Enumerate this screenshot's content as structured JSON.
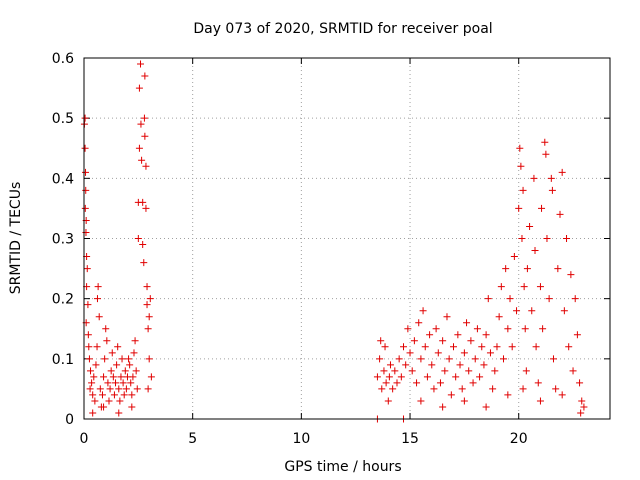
{
  "chart_data": {
    "type": "scatter",
    "title": "Day 073 of 2020, SRMTID for receiver poal",
    "xlabel": "GPS time / hours",
    "ylabel": "SRMTID / TECUs",
    "xlim": [
      0,
      24.2
    ],
    "ylim": [
      0,
      0.6
    ],
    "xticks": [
      0,
      5,
      10,
      15,
      20
    ],
    "xtick_labels": [
      "0",
      "5",
      "10",
      "15",
      "20"
    ],
    "yticks": [
      0,
      0.1,
      0.2,
      0.3,
      0.4,
      0.5,
      0.6
    ],
    "ytick_labels": [
      "0",
      "0.1",
      "0.2",
      "0.3",
      "0.4",
      "0.5",
      "0.6"
    ],
    "grid": true,
    "marker": "+",
    "color": "#e00000",
    "series": [
      {
        "name": "SRMTID",
        "points": [
          [
            0.02,
            0.49
          ],
          [
            0.05,
            0.5
          ],
          [
            0.05,
            0.45
          ],
          [
            0.07,
            0.41
          ],
          [
            0.08,
            0.38
          ],
          [
            0.06,
            0.35
          ],
          [
            0.1,
            0.33
          ],
          [
            0.09,
            0.31
          ],
          [
            0.12,
            0.27
          ],
          [
            0.15,
            0.25
          ],
          [
            0.12,
            0.22
          ],
          [
            0.18,
            0.19
          ],
          [
            0.1,
            0.16
          ],
          [
            0.2,
            0.14
          ],
          [
            0.22,
            0.12
          ],
          [
            0.25,
            0.1
          ],
          [
            0.3,
            0.08
          ],
          [
            0.35,
            0.06
          ],
          [
            0.28,
            0.05
          ],
          [
            0.4,
            0.04
          ],
          [
            0.45,
            0.07
          ],
          [
            0.5,
            0.03
          ],
          [
            0.55,
            0.09
          ],
          [
            0.6,
            0.12
          ],
          [
            0.62,
            0.2
          ],
          [
            0.65,
            0.22
          ],
          [
            0.7,
            0.17
          ],
          [
            0.75,
            0.05
          ],
          [
            0.8,
            0.02
          ],
          [
            0.85,
            0.04
          ],
          [
            0.9,
            0.07
          ],
          [
            0.95,
            0.1
          ],
          [
            1.0,
            0.15
          ],
          [
            1.05,
            0.13
          ],
          [
            1.1,
            0.06
          ],
          [
            1.15,
            0.03
          ],
          [
            1.2,
            0.05
          ],
          [
            1.25,
            0.08
          ],
          [
            1.3,
            0.11
          ],
          [
            1.35,
            0.07
          ],
          [
            1.4,
            0.04
          ],
          [
            1.45,
            0.06
          ],
          [
            1.5,
            0.09
          ],
          [
            1.55,
            0.12
          ],
          [
            1.6,
            0.05
          ],
          [
            1.65,
            0.03
          ],
          [
            1.7,
            0.07
          ],
          [
            1.75,
            0.1
          ],
          [
            1.8,
            0.06
          ],
          [
            1.85,
            0.04
          ],
          [
            1.9,
            0.08
          ],
          [
            1.95,
            0.05
          ],
          [
            2.0,
            0.07
          ],
          [
            2.05,
            0.1
          ],
          [
            2.1,
            0.09
          ],
          [
            2.15,
            0.06
          ],
          [
            2.2,
            0.04
          ],
          [
            2.25,
            0.07
          ],
          [
            2.3,
            0.11
          ],
          [
            2.35,
            0.13
          ],
          [
            2.4,
            0.08
          ],
          [
            2.45,
            0.05
          ],
          [
            2.5,
            0.3
          ],
          [
            2.5,
            0.36
          ],
          [
            2.55,
            0.45
          ],
          [
            2.55,
            0.55
          ],
          [
            2.6,
            0.59
          ],
          [
            2.62,
            0.49
          ],
          [
            2.65,
            0.43
          ],
          [
            2.7,
            0.36
          ],
          [
            2.7,
            0.29
          ],
          [
            2.75,
            0.26
          ],
          [
            2.78,
            0.5
          ],
          [
            2.8,
            0.57
          ],
          [
            2.8,
            0.47
          ],
          [
            2.85,
            0.42
          ],
          [
            2.85,
            0.35
          ],
          [
            2.9,
            0.22
          ],
          [
            2.9,
            0.19
          ],
          [
            2.95,
            0.15
          ],
          [
            3.0,
            0.17
          ],
          [
            3.05,
            0.2
          ],
          [
            3.0,
            0.1
          ],
          [
            2.95,
            0.05
          ],
          [
            3.1,
            0.07
          ],
          [
            0.4,
            0.01
          ],
          [
            0.9,
            0.02
          ],
          [
            1.6,
            0.01
          ],
          [
            2.2,
            0.02
          ],
          [
            13.5,
            0.07
          ],
          [
            13.6,
            0.1
          ],
          [
            13.65,
            0.13
          ],
          [
            13.7,
            0.05
          ],
          [
            13.8,
            0.08
          ],
          [
            13.85,
            0.12
          ],
          [
            13.9,
            0.06
          ],
          [
            14.0,
            0.03
          ],
          [
            14.05,
            0.07
          ],
          [
            14.1,
            0.09
          ],
          [
            14.2,
            0.05
          ],
          [
            14.3,
            0.08
          ],
          [
            14.4,
            0.06
          ],
          [
            14.5,
            0.1
          ],
          [
            14.6,
            0.07
          ],
          [
            14.7,
            0.12
          ],
          [
            14.8,
            0.09
          ],
          [
            14.9,
            0.15
          ],
          [
            15.0,
            0.11
          ],
          [
            15.1,
            0.08
          ],
          [
            15.2,
            0.13
          ],
          [
            15.3,
            0.06
          ],
          [
            15.4,
            0.16
          ],
          [
            15.5,
            0.1
          ],
          [
            15.6,
            0.18
          ],
          [
            15.7,
            0.12
          ],
          [
            15.8,
            0.07
          ],
          [
            15.9,
            0.14
          ],
          [
            16.0,
            0.09
          ],
          [
            16.1,
            0.05
          ],
          [
            16.2,
            0.15
          ],
          [
            16.3,
            0.11
          ],
          [
            16.4,
            0.06
          ],
          [
            16.5,
            0.13
          ],
          [
            16.6,
            0.08
          ],
          [
            16.7,
            0.17
          ],
          [
            16.8,
            0.1
          ],
          [
            16.9,
            0.04
          ],
          [
            17.0,
            0.12
          ],
          [
            17.1,
            0.07
          ],
          [
            17.2,
            0.14
          ],
          [
            17.3,
            0.09
          ],
          [
            17.4,
            0.05
          ],
          [
            17.5,
            0.11
          ],
          [
            17.6,
            0.16
          ],
          [
            17.7,
            0.08
          ],
          [
            17.8,
            0.13
          ],
          [
            17.9,
            0.06
          ],
          [
            18.0,
            0.1
          ],
          [
            18.1,
            0.15
          ],
          [
            18.2,
            0.07
          ],
          [
            18.3,
            0.12
          ],
          [
            18.4,
            0.09
          ],
          [
            18.5,
            0.14
          ],
          [
            18.6,
            0.2
          ],
          [
            18.7,
            0.11
          ],
          [
            18.8,
            0.05
          ],
          [
            18.9,
            0.08
          ],
          [
            19.0,
            0.12
          ],
          [
            19.1,
            0.17
          ],
          [
            19.2,
            0.22
          ],
          [
            19.3,
            0.1
          ],
          [
            19.4,
            0.25
          ],
          [
            19.5,
            0.15
          ],
          [
            19.6,
            0.2
          ],
          [
            19.7,
            0.12
          ],
          [
            19.8,
            0.27
          ],
          [
            19.9,
            0.18
          ],
          [
            20.0,
            0.35
          ],
          [
            20.05,
            0.45
          ],
          [
            20.1,
            0.42
          ],
          [
            20.15,
            0.3
          ],
          [
            20.2,
            0.38
          ],
          [
            20.25,
            0.22
          ],
          [
            20.3,
            0.15
          ],
          [
            20.35,
            0.08
          ],
          [
            20.4,
            0.25
          ],
          [
            20.5,
            0.32
          ],
          [
            20.6,
            0.18
          ],
          [
            20.7,
            0.4
          ],
          [
            20.75,
            0.28
          ],
          [
            20.8,
            0.12
          ],
          [
            20.9,
            0.06
          ],
          [
            21.0,
            0.22
          ],
          [
            21.05,
            0.35
          ],
          [
            21.1,
            0.15
          ],
          [
            21.2,
            0.46
          ],
          [
            21.25,
            0.44
          ],
          [
            21.3,
            0.3
          ],
          [
            21.4,
            0.2
          ],
          [
            21.5,
            0.4
          ],
          [
            21.55,
            0.38
          ],
          [
            21.6,
            0.1
          ],
          [
            21.7,
            0.05
          ],
          [
            21.8,
            0.25
          ],
          [
            21.9,
            0.34
          ],
          [
            22.0,
            0.41
          ],
          [
            22.1,
            0.18
          ],
          [
            22.2,
            0.3
          ],
          [
            22.3,
            0.12
          ],
          [
            22.4,
            0.24
          ],
          [
            22.5,
            0.08
          ],
          [
            22.6,
            0.2
          ],
          [
            22.7,
            0.14
          ],
          [
            22.8,
            0.06
          ],
          [
            22.9,
            0.03
          ],
          [
            23.0,
            0.02
          ],
          [
            20.2,
            0.05
          ],
          [
            21.0,
            0.03
          ],
          [
            22.0,
            0.04
          ],
          [
            22.85,
            0.01
          ],
          [
            13.5,
            0.0
          ],
          [
            14.7,
            0.0
          ],
          [
            15.5,
            0.03
          ],
          [
            16.5,
            0.02
          ],
          [
            17.5,
            0.03
          ],
          [
            18.5,
            0.02
          ],
          [
            19.5,
            0.04
          ]
        ]
      }
    ]
  }
}
